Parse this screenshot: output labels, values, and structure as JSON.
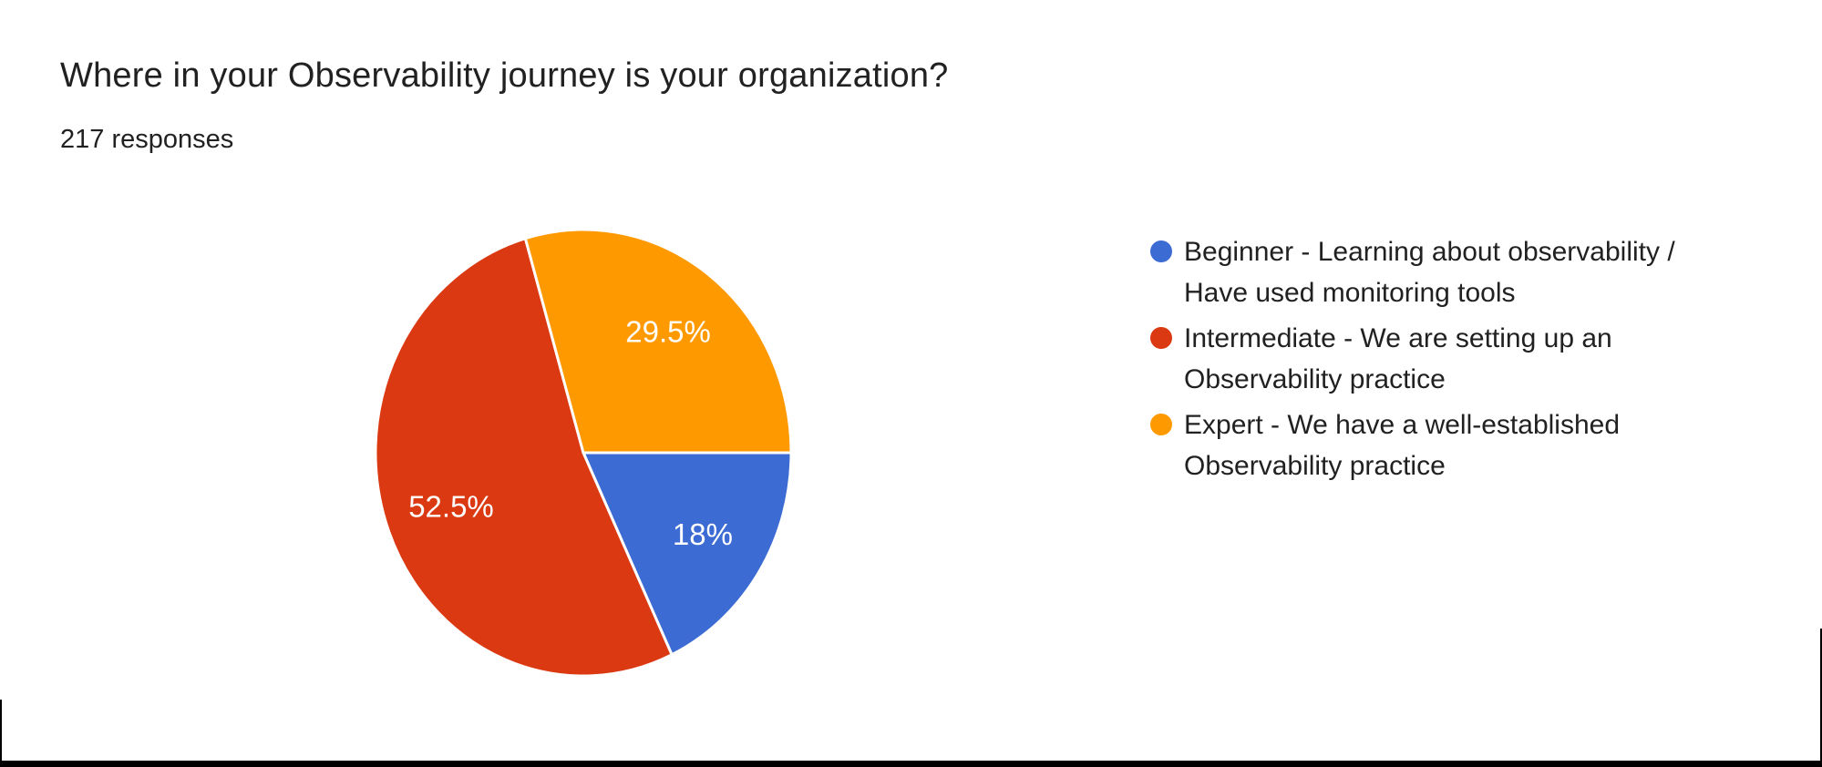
{
  "header": {
    "title": "Where in your Observability journey is your organization?",
    "responses": "217 responses"
  },
  "chart_data": {
    "type": "pie",
    "title": "Where in your Observability journey is your organization?",
    "responses_count": 217,
    "start_angle_clockwise_from_top_deg": 90,
    "legend_position": "right",
    "slices": [
      {
        "label": "Beginner - Learning about observability / Have used monitoring tools",
        "percent": 18,
        "display_percent": "18%",
        "color": "#3B6BD3"
      },
      {
        "label": "Intermediate - We are setting up an Observability practice",
        "percent": 52.5,
        "display_percent": "52.5%",
        "color": "#DB3912"
      },
      {
        "label": "Expert - We have a well-established Observability practice",
        "percent": 29.5,
        "display_percent": "29.5%",
        "color": "#FF9900"
      }
    ]
  },
  "legend": {
    "items": [
      {
        "color": "#3B6BD3",
        "lines": [
          "Beginner - Learning about observability /",
          "Have used monitoring tools"
        ]
      },
      {
        "color": "#DB3912",
        "lines": [
          "Intermediate - We are setting up an",
          "Observability practice"
        ]
      },
      {
        "color": "#FF9900",
        "lines": [
          "Expert - We have a well-established",
          "Observability practice"
        ]
      }
    ]
  },
  "colors": {
    "background": "#FFFFFF",
    "text_primary": "#212121",
    "slice_label_text": "#FFFFFF",
    "slice_divider": "#FFFFFF"
  }
}
